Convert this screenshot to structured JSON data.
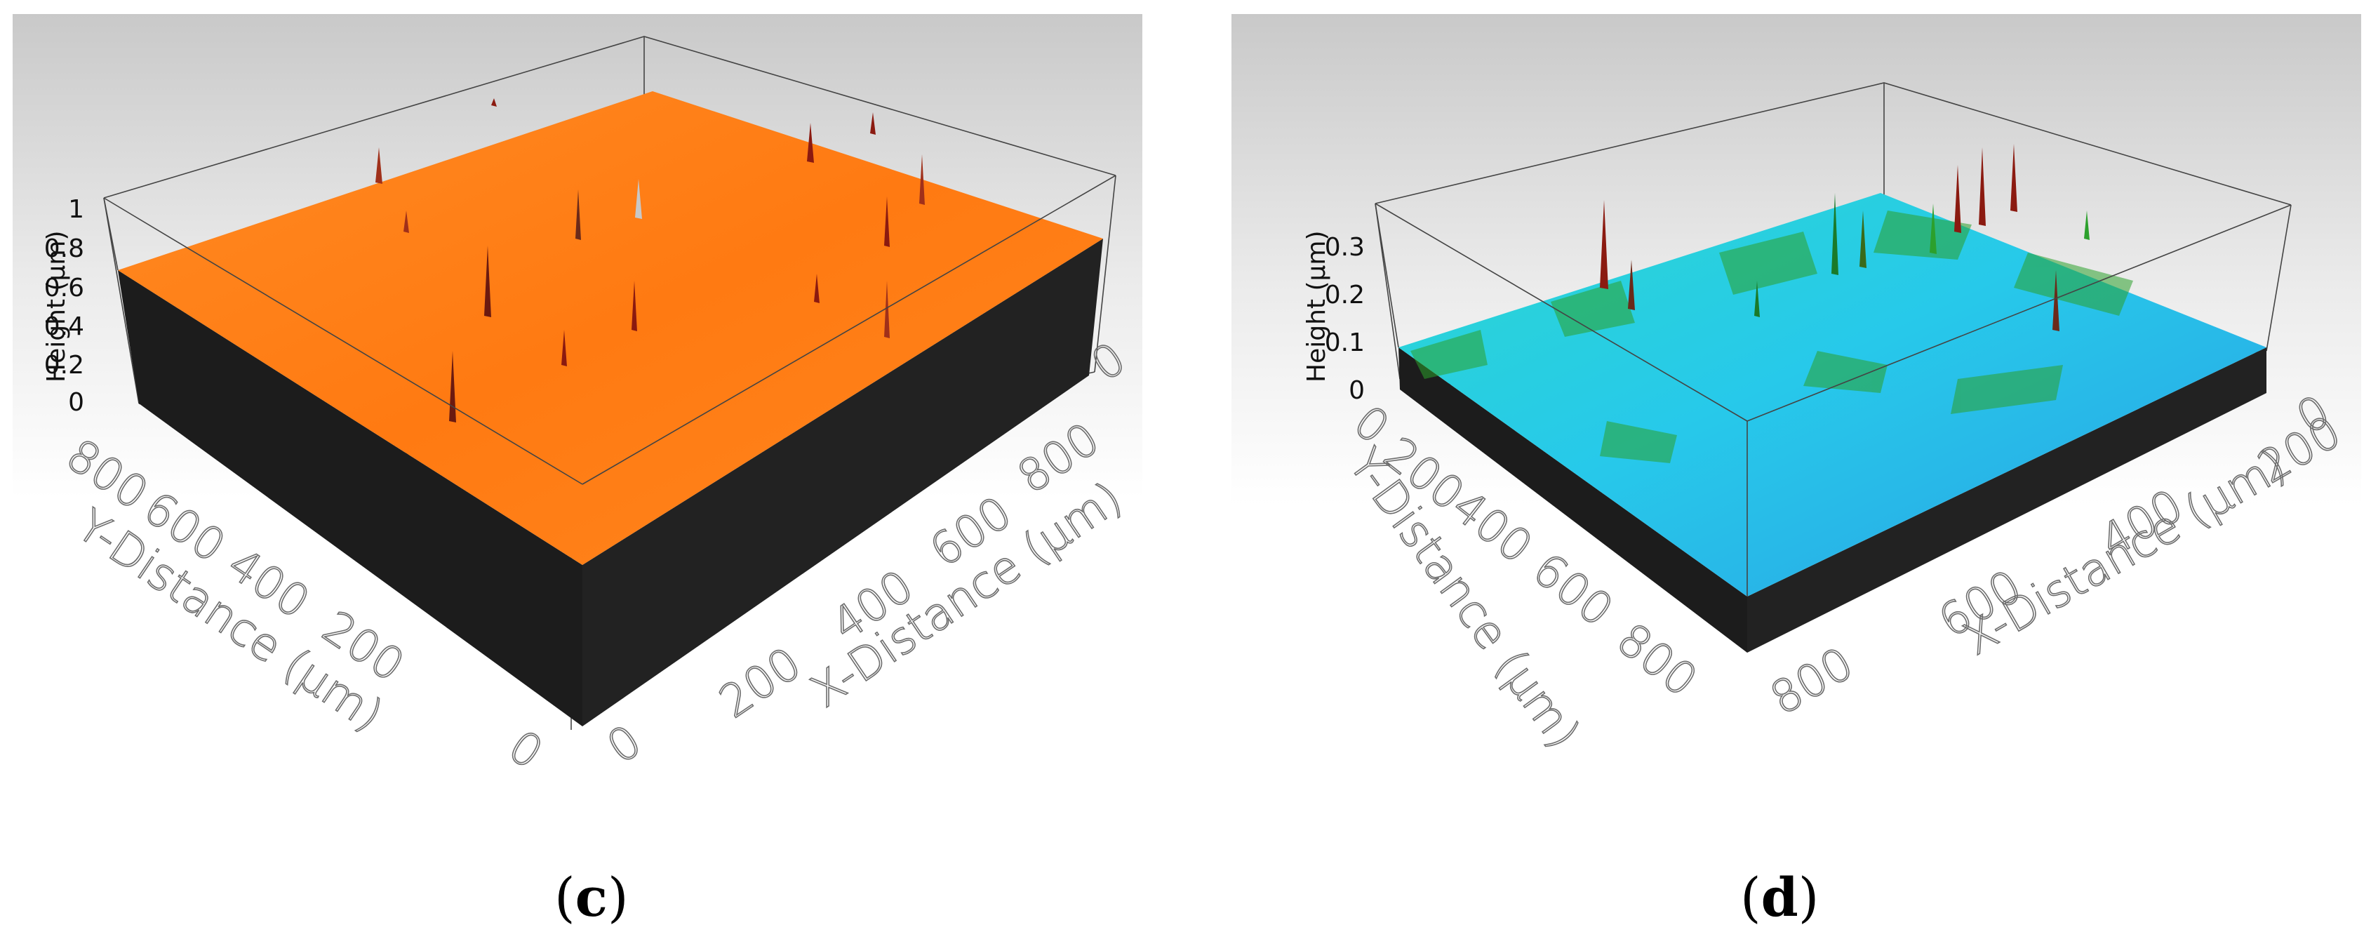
{
  "panels": [
    {
      "id": "c",
      "caption_open": "(",
      "caption_letter": "c",
      "caption_close": ")",
      "surface_color": "#ff7f1a",
      "zlabel": "Height (µm)",
      "xlabel": "X-Distance (µm)",
      "ylabel": "Y-Distance (µm)",
      "z_ticks": [
        "0",
        "0.2",
        "0.4",
        "0.6",
        "0.8",
        "1"
      ],
      "x_ticks": [
        "0",
        "200",
        "400",
        "600",
        "800"
      ],
      "y_ticks": [
        "800",
        "600",
        "400",
        "200",
        "0"
      ],
      "x_edge_ticks": [
        "0",
        "0"
      ]
    },
    {
      "id": "d",
      "caption_open": "(",
      "caption_letter": "d",
      "caption_close": ")",
      "surface_color": "#29d4e6",
      "zlabel": "Height (µm)",
      "xlabel": "X-Distance (µm)",
      "ylabel": "Y-Distance (µm)",
      "z_ticks": [
        "0",
        "0.1",
        "0.2",
        "0.3"
      ],
      "x_ticks": [
        "0",
        "200",
        "400",
        "600",
        "800"
      ],
      "y_ticks": [
        "0",
        "200",
        "400",
        "600",
        "800"
      ],
      "x_edge_ticks": [
        "0"
      ]
    }
  ],
  "chart_data": [
    {
      "type": "surface3d",
      "panel": "c",
      "xlabel": "X-Distance (µm)",
      "ylabel": "Y-Distance (µm)",
      "zlabel": "Height (µm)",
      "xlim": [
        0,
        900
      ],
      "ylim": [
        0,
        900
      ],
      "zlim": [
        0,
        1
      ],
      "z_ticks": [
        0,
        0.2,
        0.4,
        0.6,
        0.8,
        1
      ],
      "x_ticks": [
        0,
        200,
        400,
        600,
        800
      ],
      "y_ticks": [
        0,
        200,
        400,
        600,
        800
      ],
      "surface_level": 0.65,
      "colormap": [
        "#ff7f1a",
        "#d9a030",
        "#8b1a10"
      ]
    },
    {
      "type": "surface3d",
      "panel": "d",
      "xlabel": "X-Distance (µm)",
      "ylabel": "Y-Distance (µm)",
      "zlabel": "Height (µm)",
      "xlim": [
        0,
        900
      ],
      "ylim": [
        0,
        900
      ],
      "zlim": [
        0,
        0.35
      ],
      "z_ticks": [
        0,
        0.1,
        0.2,
        0.3
      ],
      "x_ticks": [
        0,
        200,
        400,
        600,
        800
      ],
      "y_ticks": [
        0,
        200,
        400,
        600,
        800
      ],
      "surface_level": 0.1,
      "colormap": [
        "#29d4e6",
        "#1e8fe0",
        "#2ca02c",
        "#8b1a10"
      ]
    }
  ]
}
